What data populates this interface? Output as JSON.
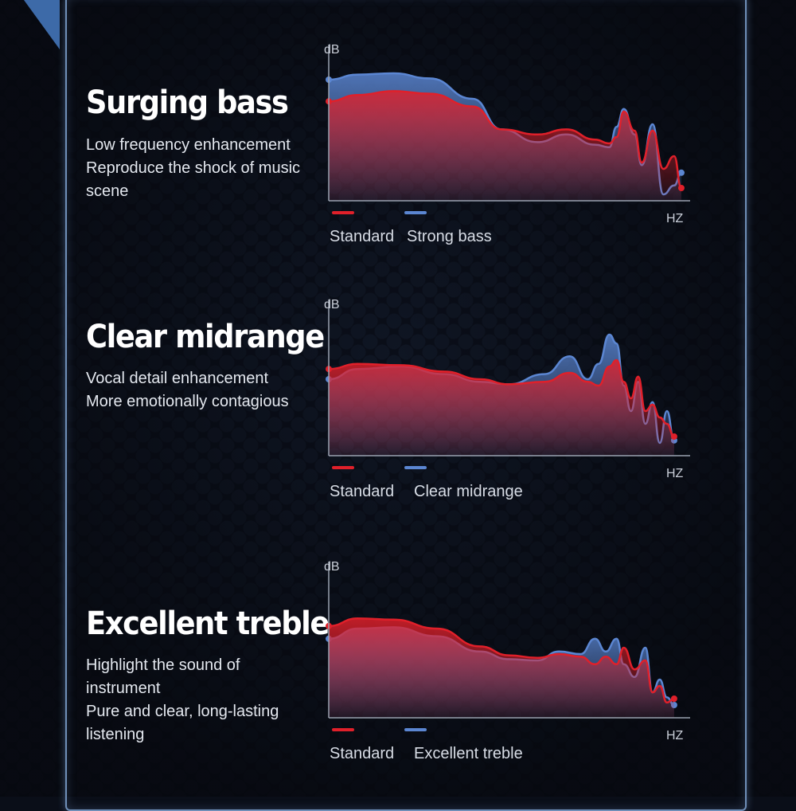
{
  "colors": {
    "standard": "#e0202a",
    "enhanced": "#5b86d2",
    "axis": "#9aa2b0",
    "background": "#0b0f1a"
  },
  "sections": [
    {
      "heading": "Surging bass",
      "description": [
        "Low frequency enhancement",
        "Reproduce the shock of music",
        "scene"
      ],
      "legend": [
        "Standard",
        "Strong bass"
      ]
    },
    {
      "heading": "Clear midrange",
      "description": [
        "Vocal detail enhancement",
        "More emotionally contagious"
      ],
      "legend": [
        "Standard",
        "Clear midrange"
      ]
    },
    {
      "heading": "Excellent treble",
      "description": [
        "Highlight the sound of",
        "instrument",
        "Pure and clear, long-lasting",
        "listening"
      ],
      "legend": [
        "Standard",
        "Excellent treble"
      ]
    }
  ],
  "chart_data": [
    {
      "type": "area",
      "xlabel": "HZ",
      "ylabel": "dB",
      "x": [
        0,
        0.08,
        0.18,
        0.28,
        0.4,
        0.48,
        0.58,
        0.66,
        0.74,
        0.78,
        0.8,
        0.82,
        0.85,
        0.87,
        0.9,
        0.93,
        0.96,
        0.98
      ],
      "series": [
        {
          "name": "Standard",
          "color": "#e0202a",
          "values": [
            0.78,
            0.83,
            0.86,
            0.84,
            0.74,
            0.56,
            0.52,
            0.56,
            0.48,
            0.45,
            0.5,
            0.7,
            0.55,
            0.3,
            0.55,
            0.25,
            0.35,
            0.1
          ]
        },
        {
          "name": "Strong bass",
          "color": "#5b86d2",
          "values": [
            0.95,
            0.99,
            1.0,
            0.96,
            0.8,
            0.56,
            0.46,
            0.52,
            0.44,
            0.42,
            0.58,
            0.72,
            0.52,
            0.28,
            0.6,
            0.05,
            0.12,
            0.22
          ]
        }
      ]
    },
    {
      "type": "area",
      "xlabel": "HZ",
      "ylabel": "dB",
      "x": [
        0,
        0.08,
        0.2,
        0.32,
        0.42,
        0.5,
        0.6,
        0.67,
        0.72,
        0.75,
        0.78,
        0.8,
        0.82,
        0.84,
        0.86,
        0.88,
        0.9,
        0.92,
        0.94,
        0.96
      ],
      "series": [
        {
          "name": "Standard",
          "color": "#e0202a",
          "values": [
            0.68,
            0.72,
            0.71,
            0.66,
            0.6,
            0.56,
            0.58,
            0.65,
            0.58,
            0.55,
            0.7,
            0.75,
            0.58,
            0.45,
            0.62,
            0.35,
            0.4,
            0.3,
            0.25,
            0.15
          ]
        },
        {
          "name": "Clear midrange",
          "color": "#5b86d2",
          "values": [
            0.6,
            0.68,
            0.7,
            0.64,
            0.58,
            0.56,
            0.64,
            0.78,
            0.6,
            0.72,
            0.95,
            0.88,
            0.55,
            0.35,
            0.58,
            0.25,
            0.42,
            0.1,
            0.35,
            0.12
          ]
        }
      ]
    },
    {
      "type": "area",
      "xlabel": "HZ",
      "ylabel": "dB",
      "x": [
        0,
        0.08,
        0.18,
        0.3,
        0.42,
        0.5,
        0.58,
        0.64,
        0.7,
        0.74,
        0.77,
        0.8,
        0.82,
        0.85,
        0.88,
        0.9,
        0.92,
        0.94,
        0.96
      ],
      "series": [
        {
          "name": "Standard",
          "color": "#e0202a",
          "values": [
            0.72,
            0.78,
            0.77,
            0.7,
            0.56,
            0.49,
            0.47,
            0.5,
            0.48,
            0.42,
            0.48,
            0.42,
            0.55,
            0.38,
            0.45,
            0.2,
            0.25,
            0.12,
            0.15
          ]
        },
        {
          "name": "Excellent treble",
          "color": "#5b86d2",
          "values": [
            0.62,
            0.7,
            0.71,
            0.64,
            0.52,
            0.46,
            0.45,
            0.52,
            0.5,
            0.62,
            0.52,
            0.62,
            0.42,
            0.32,
            0.55,
            0.2,
            0.3,
            0.16,
            0.1
          ]
        }
      ]
    }
  ]
}
